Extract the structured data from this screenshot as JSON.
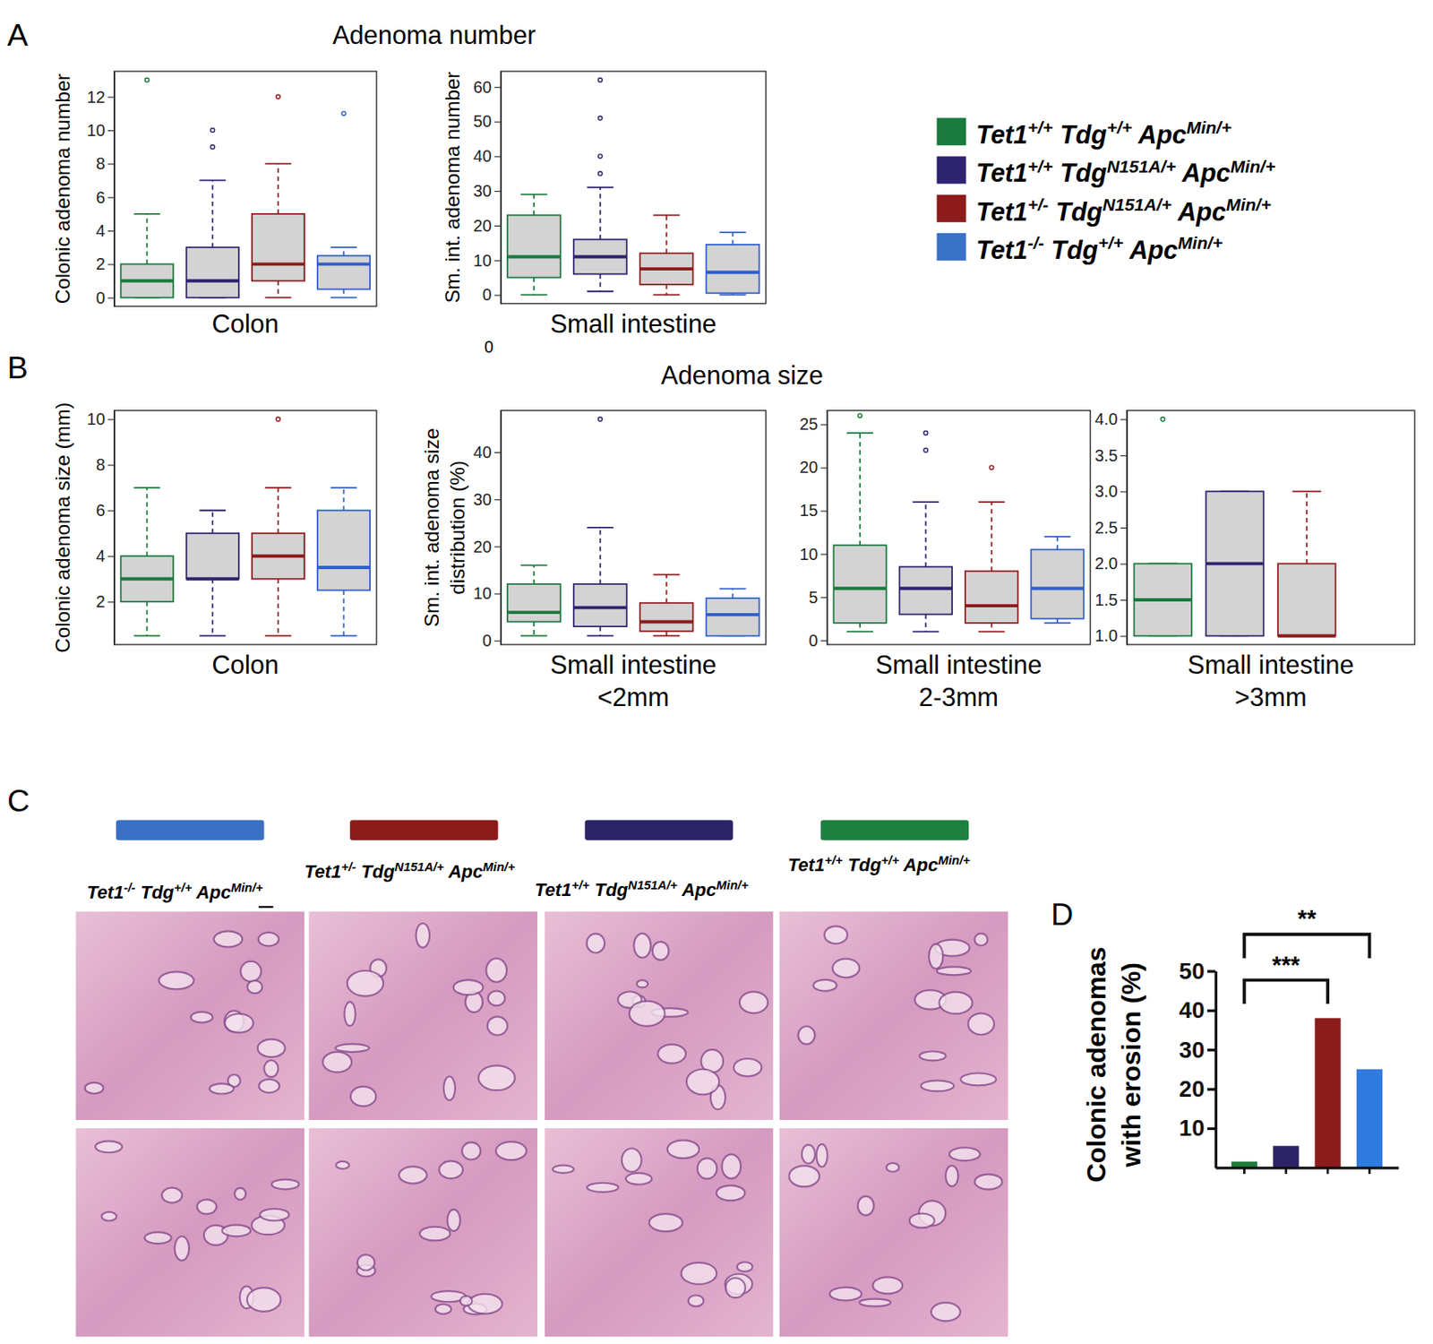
{
  "figure": {
    "panel_labels": [
      "A",
      "B",
      "C",
      "D"
    ],
    "titles": [
      "Adenoma number",
      "Adenoma size"
    ],
    "legend_entries": [
      {
        "name": "Tet1+/+ Tdg+/+ ApcMin/+",
        "color": "#1b7a3e"
      },
      {
        "name": "Tet1+/+ TdgN151A/+ ApcMin/+",
        "color": "#2e2470"
      },
      {
        "name": "Tet1+/- TdgN151A/+ ApcMin/+",
        "color": "#8e1b1b"
      },
      {
        "name": "Tet1-/- Tdg+/+ ApcMin/+",
        "color": "#3a72c8"
      }
    ],
    "stray_label": "0",
    "histology": {
      "labels": [
        "Tet1-/- Tdg+/+ ApcMin/+",
        "Tet1+/- TdgN151A/+ ApcMin/+",
        "Tet1+/+ TdgN151A/+ ApcMin/+",
        "Tet1+/+ Tdg+/+ ApcMin/+"
      ],
      "colors": [
        "#3a6fc4",
        "#8b1a1a",
        "#2a2366",
        "#1d8040"
      ]
    }
  },
  "chart_data": [
    {
      "type": "box",
      "xlabel": [
        "Colon"
      ],
      "ylabel": [
        "Colonic adenoma number"
      ],
      "ylim": [
        -0.52,
        13.52
      ],
      "yticks": [
        0,
        2,
        4,
        6,
        8,
        10,
        12
      ],
      "tick_labels": "y",
      "series": [
        {
          "color": "#1b7a3e",
          "min": 0,
          "q1": 0,
          "median": 1,
          "q3": 2,
          "max": 5,
          "outliers": [
            13
          ]
        },
        {
          "color": "#2e2470",
          "min": 0,
          "q1": 0,
          "median": 1,
          "q3": 3,
          "max": 7,
          "outliers": [
            9,
            10
          ]
        },
        {
          "color": "#8e1b1b",
          "min": 0,
          "q1": 1,
          "median": 2,
          "q3": 5,
          "max": 8,
          "outliers": [
            12
          ]
        },
        {
          "color": "#2f5fd0",
          "min": 0,
          "q1": 0.5,
          "median": 2,
          "q3": 2.5,
          "max": 3,
          "outliers": [
            11
          ]
        }
      ]
    },
    {
      "type": "box",
      "xlabel": [
        "Small intestine"
      ],
      "ylabel": [
        "Sm. int. adenoma number"
      ],
      "ylim": [
        -2.5,
        64.5
      ],
      "yticks": [
        0,
        10,
        20,
        30,
        40,
        50,
        60
      ],
      "tick_labels": "y",
      "series": [
        {
          "color": "#1b7a3e",
          "min": 0,
          "q1": 5,
          "median": 11,
          "q3": 23,
          "max": 29,
          "outliers": []
        },
        {
          "color": "#2e2470",
          "min": 1,
          "q1": 6,
          "median": 11,
          "q3": 16,
          "max": 31,
          "outliers": [
            35,
            40,
            51,
            62
          ]
        },
        {
          "color": "#8e1b1b",
          "min": 0,
          "q1": 3,
          "median": 7.5,
          "q3": 12,
          "max": 23,
          "outliers": []
        },
        {
          "color": "#2f5fd0",
          "min": 0,
          "q1": 0.5,
          "median": 6.5,
          "q3": 14.5,
          "max": 18,
          "outliers": []
        }
      ]
    },
    {
      "type": "box",
      "xlabel": [
        "Colon"
      ],
      "ylabel": [
        "Colonic adenoma size (mm)"
      ],
      "ylim": [
        0.12,
        10.38
      ],
      "yticks": [
        2,
        4,
        6,
        8,
        10
      ],
      "tick_labels": "y",
      "series": [
        {
          "color": "#1b7a3e",
          "min": 0.5,
          "q1": 2,
          "median": 3,
          "q3": 4,
          "max": 7,
          "outliers": []
        },
        {
          "color": "#2e2470",
          "min": 0.5,
          "q1": 3,
          "median": 3,
          "q3": 5,
          "max": 6,
          "outliers": []
        },
        {
          "color": "#8e1b1b",
          "min": 0.5,
          "q1": 3,
          "median": 4,
          "q3": 5,
          "max": 7,
          "outliers": [
            10
          ]
        },
        {
          "color": "#2f5fd0",
          "min": 0.5,
          "q1": 2.5,
          "median": 3.5,
          "q3": 6,
          "max": 7,
          "outliers": []
        }
      ]
    },
    {
      "type": "box",
      "xlabel": [
        "Small intestine",
        "<2mm"
      ],
      "ylabel": [
        "Sm. int. adenoma size",
        "distribution (%)"
      ],
      "ylim": [
        -0.84,
        48.84
      ],
      "yticks": [
        0,
        10,
        20,
        30,
        40
      ],
      "tick_labels": "y",
      "series": [
        {
          "color": "#1b7a3e",
          "min": 1,
          "q1": 4,
          "median": 6,
          "q3": 12,
          "max": 16,
          "outliers": []
        },
        {
          "color": "#2e2470",
          "min": 1,
          "q1": 3,
          "median": 7,
          "q3": 12,
          "max": 24,
          "outliers": [
            47
          ]
        },
        {
          "color": "#8e1b1b",
          "min": 1,
          "q1": 2,
          "median": 4,
          "q3": 8,
          "max": 14,
          "outliers": []
        },
        {
          "color": "#2f5fd0",
          "min": 1,
          "q1": 1,
          "median": 5.5,
          "q3": 9,
          "max": 11,
          "outliers": []
        }
      ]
    },
    {
      "type": "box",
      "xlabel": [
        "Small intestine",
        "2-3mm"
      ],
      "ylim": [
        -0.5,
        26.6
      ],
      "yticks": [
        0,
        5,
        10,
        15,
        20,
        25
      ],
      "tick_labels": "y",
      "series": [
        {
          "color": "#1b7a3e",
          "min": 1,
          "q1": 2,
          "median": 6,
          "q3": 11,
          "max": 24,
          "outliers": [
            26
          ]
        },
        {
          "color": "#2e2470",
          "min": 1,
          "q1": 3,
          "median": 6,
          "q3": 8.5,
          "max": 16,
          "outliers": [
            22,
            24
          ]
        },
        {
          "color": "#8e1b1b",
          "min": 1,
          "q1": 2,
          "median": 4,
          "q3": 8,
          "max": 16,
          "outliers": [
            20
          ]
        },
        {
          "color": "#2f5fd0",
          "min": 2,
          "q1": 2.5,
          "median": 6,
          "q3": 10.5,
          "max": 12,
          "outliers": []
        }
      ]
    },
    {
      "type": "box",
      "xlabel": [
        "Small intestine",
        ">3mm"
      ],
      "ylim": [
        0.88,
        4.12
      ],
      "yticks": [
        {
          "value": 1,
          "label": "1.0"
        },
        {
          "value": 1.5,
          "label": "1.5"
        },
        {
          "value": 2,
          "label": "2.0"
        },
        {
          "value": 2.5,
          "label": "2.5"
        },
        {
          "value": 3,
          "label": "3.0"
        },
        {
          "value": 3.5,
          "label": "3.5"
        },
        {
          "value": 4,
          "label": "4.0"
        }
      ],
      "tick_labels": "y",
      "series": [
        {
          "color": "#1b7a3e",
          "min": 1,
          "q1": 1,
          "median": 1.5,
          "q3": 2,
          "max": 2,
          "outliers": [
            4
          ]
        },
        {
          "color": "#2e2470",
          "min": 1,
          "q1": 1,
          "median": 2,
          "q3": 3,
          "max": 3,
          "outliers": []
        },
        {
          "color": "#8e1b1b",
          "min": 1,
          "q1": 1,
          "median": 1,
          "q3": 2,
          "max": 3,
          "outliers": []
        },
        {
          "color": "#2f5fd0",
          "min": null,
          "q1": null,
          "median": null,
          "q3": null,
          "max": null,
          "outliers": []
        }
      ]
    },
    {
      "type": "bar",
      "ylabel": [
        "Colonic adenomas",
        "with erosion (%)"
      ],
      "categories": [
        null,
        null,
        null,
        null
      ],
      "values": [
        1.5,
        5.5,
        38,
        25
      ],
      "colors": [
        "#1e7d3c",
        "#2d2468",
        "#8b1c1c",
        "#2f7be0"
      ],
      "ylim": [
        0,
        50
      ],
      "yticks": [
        10,
        20,
        30,
        40,
        50
      ],
      "tick_labels": "y",
      "annotations": [
        {
          "text": "***",
          "from": 0,
          "to": 2
        },
        {
          "text": "**",
          "from": 0,
          "to": 3
        }
      ]
    }
  ]
}
